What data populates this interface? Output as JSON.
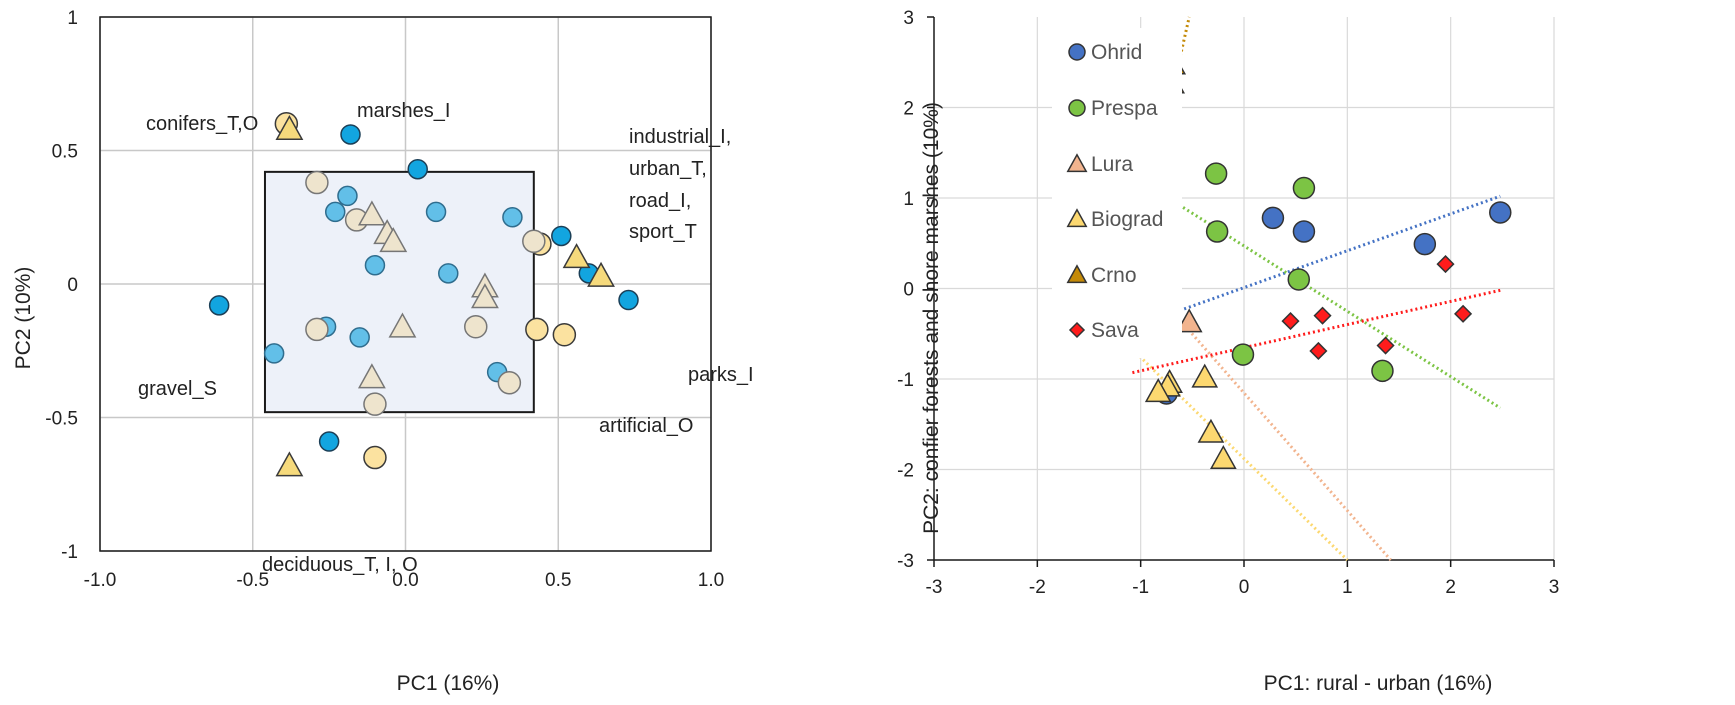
{
  "chart_data": [
    {
      "type": "scatter",
      "xlabel": "PC1 (16%)",
      "ylabel": "PC2 (10%)",
      "xlim": [
        -1.0,
        1.0
      ],
      "ylim": [
        -1,
        1
      ],
      "xticks": [
        "-1.0",
        "-0.5",
        "0.0",
        "0.5",
        "1.0"
      ],
      "yticks": [
        "-1",
        "-0.5",
        "0",
        "0.5",
        "1"
      ],
      "grid": true,
      "highlight_box": {
        "x": [
          -0.46,
          0.42
        ],
        "y": [
          -0.48,
          0.42
        ]
      },
      "colors": {
        "variable_point": "#12a5e0",
        "variable_point_inside": "#62bfe8",
        "site_circle": "#fbe2a0",
        "site_triangle": "#f6da7c",
        "site_faded": "#eee4cd"
      },
      "series": [
        {
          "marker": "circle",
          "values": [
            [
              -0.61,
              -0.08
            ],
            [
              -0.18,
              0.56
            ],
            [
              0.04,
              0.43
            ],
            [
              0.51,
              0.18
            ],
            [
              0.6,
              0.04
            ],
            [
              0.73,
              -0.06
            ],
            [
              -0.25,
              -0.59
            ],
            [
              -0.19,
              0.33
            ],
            [
              -0.23,
              0.27
            ],
            [
              0.1,
              0.27
            ],
            [
              0.35,
              0.25
            ],
            [
              -0.1,
              0.07
            ],
            [
              0.14,
              0.04
            ],
            [
              -0.26,
              -0.16
            ],
            [
              -0.15,
              -0.2
            ],
            [
              -0.43,
              -0.26
            ],
            [
              0.3,
              -0.33
            ]
          ]
        },
        {
          "marker": "circle",
          "values": [
            [
              -0.39,
              0.6
            ],
            [
              0.44,
              0.15
            ],
            [
              0.43,
              -0.17
            ],
            [
              0.52,
              -0.19
            ],
            [
              -0.1,
              -0.65
            ],
            [
              -0.29,
              0.38
            ],
            [
              -0.16,
              0.24
            ],
            [
              0.42,
              0.16
            ],
            [
              -0.29,
              -0.17
            ],
            [
              0.23,
              -0.16
            ],
            [
              0.34,
              -0.37
            ],
            [
              -0.1,
              -0.45
            ]
          ]
        },
        {
          "marker": "triangle",
          "values": [
            [
              -0.38,
              0.58
            ],
            [
              0.56,
              0.1
            ],
            [
              0.64,
              0.03
            ],
            [
              -0.38,
              -0.68
            ],
            [
              -0.11,
              0.26
            ],
            [
              -0.06,
              0.19
            ],
            [
              -0.04,
              0.16
            ],
            [
              0.26,
              -0.01
            ],
            [
              0.26,
              -0.05
            ],
            [
              -0.01,
              -0.16
            ],
            [
              -0.11,
              -0.35
            ]
          ]
        }
      ],
      "annotations": [
        "conifers_T,O",
        "marshes_I",
        "industrial_I,",
        "urban_T,",
        "road_I,",
        "sport_T",
        "gravel_S",
        "parks_I",
        "artificial_O",
        "deciduous_T, I, O"
      ]
    },
    {
      "type": "scatter",
      "xlabel": "PC1: rural - urban (16%)",
      "ylabel": "PC2: confier forests and shore marshes (10%)",
      "xlim": [
        -3,
        3
      ],
      "ylim": [
        -3,
        3
      ],
      "xticks": [
        "-3",
        "-2",
        "-1",
        "0",
        "1",
        "2",
        "3"
      ],
      "yticks": [
        "-3",
        "-2",
        "-1",
        "0",
        "1",
        "2",
        "3"
      ],
      "grid": true,
      "legend_position": "top-left",
      "series": [
        {
          "name": "Ohrid",
          "marker": "circle",
          "color": "#4472c4",
          "values": [
            [
              0.28,
              0.78
            ],
            [
              0.58,
              0.63
            ],
            [
              1.75,
              0.49
            ],
            [
              2.48,
              0.84
            ],
            [
              -0.72,
              -0.04
            ],
            [
              -0.75,
              -1.16
            ]
          ],
          "trend": [
            [
              -1.08,
              -0.43
            ],
            [
              2.48,
              1.02
            ]
          ]
        },
        {
          "name": "Prespa",
          "marker": "circle",
          "color": "#7cc444",
          "values": [
            [
              -0.27,
              1.27
            ],
            [
              0.58,
              1.11
            ],
            [
              -0.26,
              0.63
            ],
            [
              0.53,
              0.1
            ],
            [
              -0.01,
              -0.73
            ],
            [
              1.34,
              -0.91
            ]
          ],
          "trend": [
            [
              -1.08,
              1.25
            ],
            [
              2.48,
              -1.32
            ]
          ]
        },
        {
          "name": "Lura",
          "marker": "triangle",
          "color": "#f2b48e",
          "values": [
            [
              -0.88,
              0.58
            ],
            [
              -0.86,
              0.15
            ],
            [
              -0.53,
              -0.37
            ],
            [
              -0.9,
              -0.42
            ],
            [
              -0.82,
              -0.5
            ],
            [
              -0.76,
              -0.57
            ]
          ],
          "trend": [
            [
              -1.08,
              0.25
            ],
            [
              1.42,
              -3.0
            ]
          ]
        },
        {
          "name": "Biograd",
          "marker": "triangle",
          "color": "#fcd870",
          "values": [
            [
              -0.72,
              -1.04
            ],
            [
              -0.74,
              -1.08
            ],
            [
              -0.83,
              -1.14
            ],
            [
              -0.38,
              -0.98
            ],
            [
              -0.32,
              -1.59
            ],
            [
              -0.2,
              -1.88
            ]
          ],
          "trend": [
            [
              -1.08,
              -0.67
            ],
            [
              1.0,
              -3.0
            ]
          ]
        },
        {
          "name": "Crno",
          "marker": "triangle",
          "color": "#c48a08",
          "values": [
            [
              -0.69,
              2.48
            ],
            [
              -0.7,
              2.27
            ],
            [
              -0.92,
              1.02
            ],
            [
              -0.9,
              0.77
            ],
            [
              -0.83,
              0.73
            ],
            [
              -1.07,
              0.66
            ]
          ],
          "trend": [
            [
              -1.08,
              0.25
            ],
            [
              -0.53,
              3.0
            ]
          ]
        },
        {
          "name": "Sava",
          "marker": "diamond",
          "color": "#ff1c1c",
          "values": [
            [
              1.95,
              0.27
            ],
            [
              2.12,
              -0.28
            ],
            [
              0.45,
              -0.36
            ],
            [
              0.76,
              -0.3
            ],
            [
              0.72,
              -0.69
            ],
            [
              1.37,
              -0.63
            ]
          ],
          "trend": [
            [
              -1.08,
              -0.93
            ],
            [
              2.48,
              -0.02
            ]
          ]
        }
      ]
    }
  ]
}
